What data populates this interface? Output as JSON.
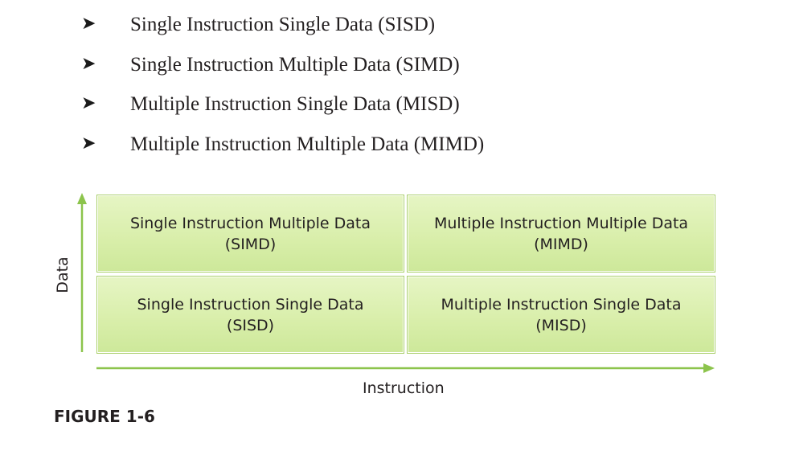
{
  "bullets": [
    {
      "marker": "➤",
      "text": "Single Instruction Single Data (SISD)"
    },
    {
      "marker": "➤",
      "text": "Single Instruction Multiple Data (SIMD)"
    },
    {
      "marker": "➤",
      "text": "Multiple Instruction Single Data (MISD)"
    },
    {
      "marker": "➤",
      "text": "Multiple Instruction Multiple Data (MIMD)"
    }
  ],
  "diagram": {
    "y_axis_label": "Data",
    "x_axis_label": "Instruction",
    "cells": {
      "top_left": {
        "line1": "Single Instruction Multiple Data",
        "line2": "(SIMD)"
      },
      "top_right": {
        "line1": "Multiple Instruction Multiple Data",
        "line2": "(MIMD)"
      },
      "bottom_left": {
        "line1": "Single Instruction Single Data",
        "line2": "(SISD)"
      },
      "bottom_right": {
        "line1": "Multiple Instruction Single Data",
        "line2": "(MISD)"
      }
    },
    "colors": {
      "cell_fill": "#d8eea9",
      "cell_border": "#a9cf6a",
      "axis": "#8cc44c"
    }
  },
  "figure_label": "FIGURE 1-6"
}
